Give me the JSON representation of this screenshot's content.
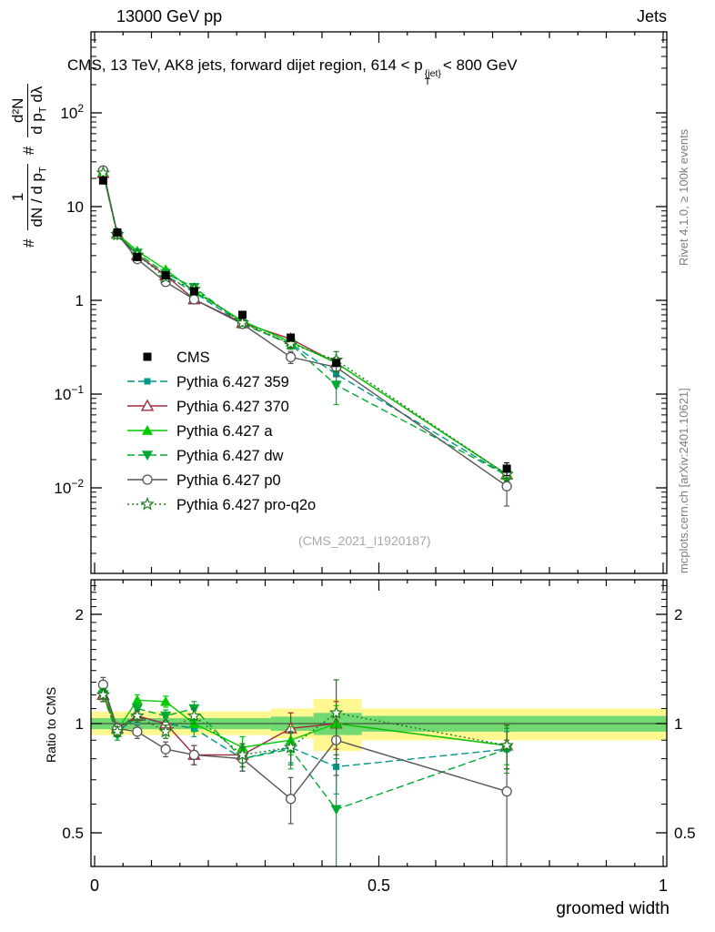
{
  "header": {
    "left": "13000 GeV pp",
    "right": "Jets"
  },
  "plot_title": {
    "pre": "CMS, 13 TeV, AK8 jets, forward dijet region, 614 < p",
    "sup": "{jet}",
    "sub": "T",
    "post": "< 800 GeV"
  },
  "watermark": "(CMS_2021_I1920187)",
  "side_notes": {
    "top": "Rivet 4.1.0, ≥ 100k events",
    "bottom": "mcplots.cern.ch [arXiv:2401.10621]"
  },
  "labels": {
    "xlabel": "groomed width",
    "ratio_ylabel": "Ratio to CMS"
  },
  "ylabel": {
    "hash1": "#",
    "num1": "1",
    "den1_a": "dN / d p",
    "den1_sub": "T",
    "hash2": "#",
    "num2": "d²N",
    "den2_a": "d p",
    "den2_sub": "T",
    "den2_b": " dλ"
  },
  "chart_data": {
    "type": "line",
    "title": "CMS, 13 TeV, AK8 jets, forward dijet region, 614 < pT{jet} < 800 GeV",
    "xlabel": "groomed width",
    "ylabel": "# 1/(dN/dpT) d²N/(dpT dλ)",
    "xlim": [
      0,
      1
    ],
    "main_yscale": "log",
    "ratio_yscale": "log",
    "x": [
      0.015,
      0.04,
      0.075,
      0.125,
      0.175,
      0.26,
      0.345,
      0.425,
      0.725
    ],
    "cms": {
      "label": "CMS",
      "color": "#000000",
      "marker": "square",
      "y": [
        19.0,
        5.3,
        2.9,
        1.85,
        1.25,
        0.7,
        0.4,
        0.215,
        0.016
      ],
      "yerr": [
        1.2,
        0.25,
        0.15,
        0.1,
        0.07,
        0.04,
        0.025,
        0.015,
        0.0025
      ]
    },
    "series": [
      {
        "name": "Pythia 6.427 359",
        "color": "#009688",
        "dash": "8,4",
        "marker": "square-small",
        "ratio": [
          1.2,
          0.95,
          1.04,
          1.0,
          0.97,
          0.8,
          0.86,
          0.76,
          0.85
        ],
        "ratio_err": [
          0.05,
          0.03,
          0.04,
          0.04,
          0.05,
          0.06,
          0.08,
          0.12,
          0.1
        ]
      },
      {
        "name": "Pythia 6.427 370",
        "color": "#a02c3c",
        "dash": "",
        "marker": "triangle-open",
        "ratio": [
          1.2,
          0.97,
          1.05,
          1.0,
          0.82,
          0.82,
          0.97,
          1.0,
          0.87
        ],
        "ratio_err": [
          0.05,
          0.03,
          0.04,
          0.04,
          0.05,
          0.06,
          0.1,
          0.15,
          0.12
        ]
      },
      {
        "name": "Pythia 6.427 a",
        "color": "#00cc00",
        "dash": "",
        "marker": "triangle-filled",
        "ratio": [
          1.25,
          0.96,
          1.16,
          1.15,
          1.0,
          0.86,
          0.9,
          1.0,
          0.87
        ],
        "ratio_err": [
          0.05,
          0.03,
          0.04,
          0.04,
          0.05,
          0.06,
          0.08,
          0.12,
          0.1
        ]
      },
      {
        "name": "Pythia 6.427 dw",
        "color": "#00aa33",
        "dash": "8,4",
        "marker": "triangle-down-filled",
        "ratio": [
          1.2,
          0.93,
          1.1,
          1.05,
          1.1,
          0.8,
          0.85,
          0.58,
          0.85
        ],
        "ratio_err": [
          0.05,
          0.03,
          0.04,
          0.04,
          0.05,
          0.06,
          0.1,
          0.22,
          0.12
        ]
      },
      {
        "name": "Pythia 6.427 p0",
        "color": "#555555",
        "dash": "",
        "marker": "circle-open",
        "ratio": [
          1.28,
          0.97,
          0.95,
          0.85,
          0.82,
          0.8,
          0.62,
          0.9,
          0.65
        ],
        "ratio_err": [
          0.06,
          0.03,
          0.04,
          0.04,
          0.05,
          0.06,
          0.09,
          0.18,
          0.25
        ]
      },
      {
        "name": "Pythia 6.427 pro-q2o",
        "color": "#1f7a1f",
        "dash": "2,3",
        "marker": "star-open",
        "ratio": [
          1.2,
          0.95,
          1.05,
          0.95,
          1.05,
          0.82,
          0.86,
          1.07,
          0.87
        ],
        "ratio_err": [
          0.05,
          0.03,
          0.04,
          0.04,
          0.05,
          0.06,
          0.09,
          0.25,
          0.12
        ]
      }
    ],
    "bands": {
      "yellow": {
        "color": "#fff78f",
        "segments": [
          [
            0,
            0.31,
            0.93,
            1.08
          ],
          [
            0.31,
            0.385,
            0.91,
            1.1
          ],
          [
            0.385,
            0.47,
            0.84,
            1.17
          ],
          [
            0.47,
            1,
            0.9,
            1.1
          ]
        ]
      },
      "green": {
        "color": "#72d872",
        "segments": [
          [
            0,
            0.31,
            0.965,
            1.035
          ],
          [
            0.31,
            0.385,
            0.955,
            1.045
          ],
          [
            0.385,
            0.47,
            0.93,
            1.07
          ],
          [
            0.47,
            1,
            0.95,
            1.05
          ]
        ]
      }
    },
    "axis": {
      "x_ticks": [
        {
          "v": 0,
          "label": "0"
        },
        {
          "v": 0.5,
          "label": "0.5"
        },
        {
          "v": 1,
          "label": "1"
        }
      ],
      "main_y_ticks": [
        {
          "v": 100,
          "base": "10",
          "exp": "2"
        },
        {
          "v": 10,
          "base": "10",
          "exp": ""
        },
        {
          "v": 1,
          "base": "1",
          "exp": ""
        },
        {
          "v": 0.1,
          "base": "10",
          "exp": "−1"
        },
        {
          "v": 0.01,
          "base": "10",
          "exp": "−2"
        }
      ],
      "ratio_y_ticks": [
        {
          "v": 0.5,
          "label": "0.5"
        },
        {
          "v": 1,
          "label": "1"
        },
        {
          "v": 2,
          "label": "2"
        }
      ]
    }
  }
}
